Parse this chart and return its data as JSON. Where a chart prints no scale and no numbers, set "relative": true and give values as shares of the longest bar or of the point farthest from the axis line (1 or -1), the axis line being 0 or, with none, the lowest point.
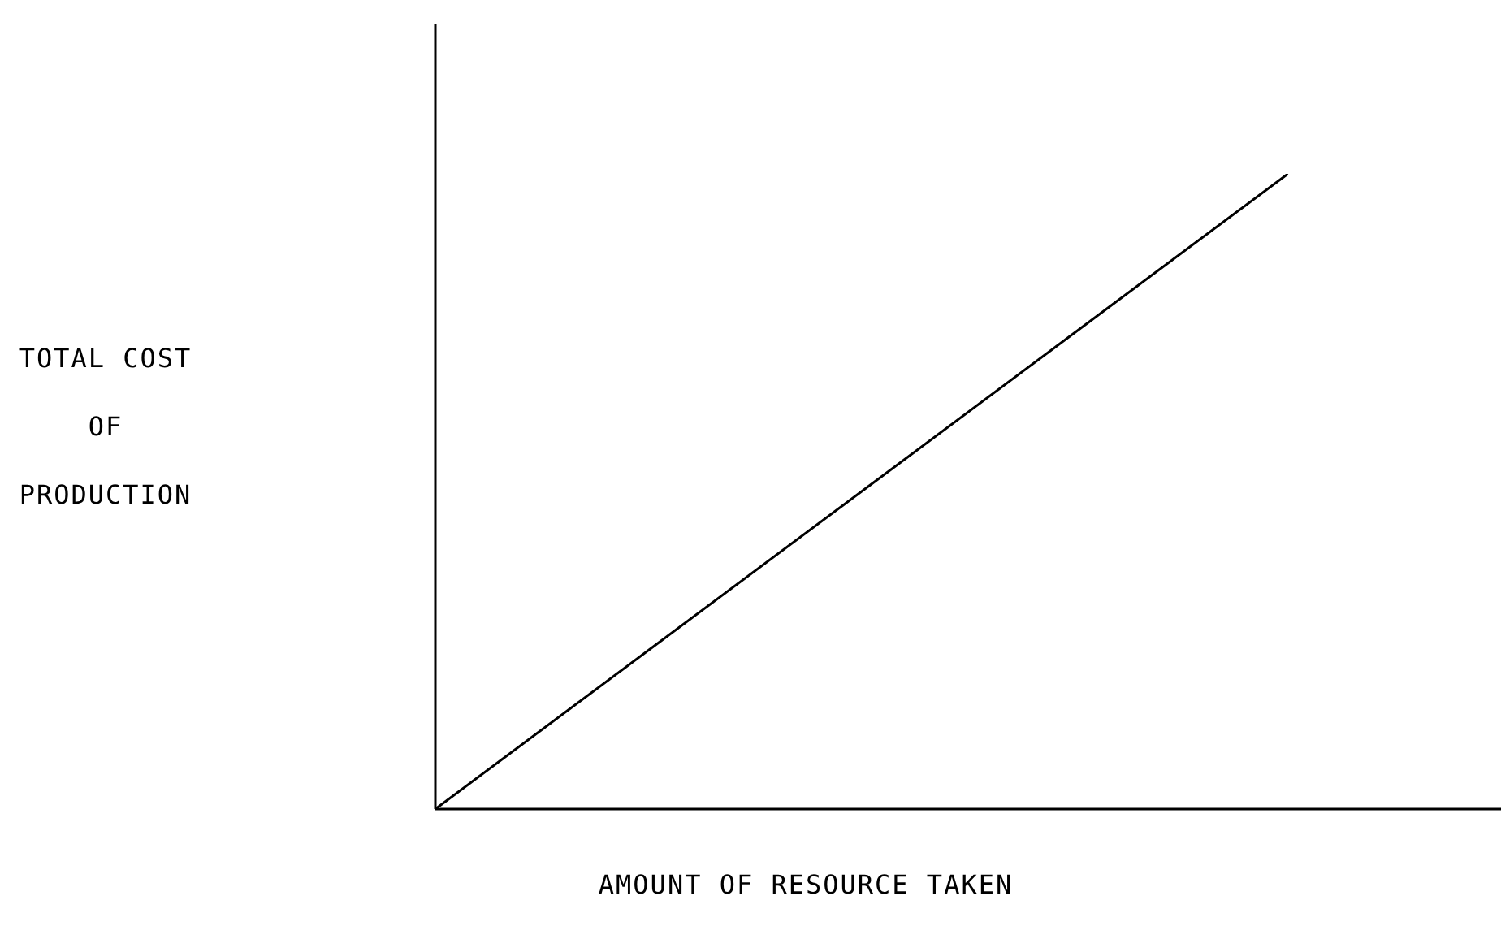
{
  "chart_data": {
    "type": "line",
    "relative": true,
    "xlabel": "AMOUNT OF RESOURCE TAKEN",
    "ylabel": "TOTAL COST OF PRODUCTION",
    "categories": [
      null,
      null,
      null,
      null,
      null,
      null
    ],
    "series": [
      {
        "color": "#000000",
        "values": [
          0,
          0.25,
          0.5,
          0.75,
          1,
          null
        ]
      }
    ],
    "marker": "none",
    "line_style": "solid",
    "grid": false,
    "legend": false
  }
}
